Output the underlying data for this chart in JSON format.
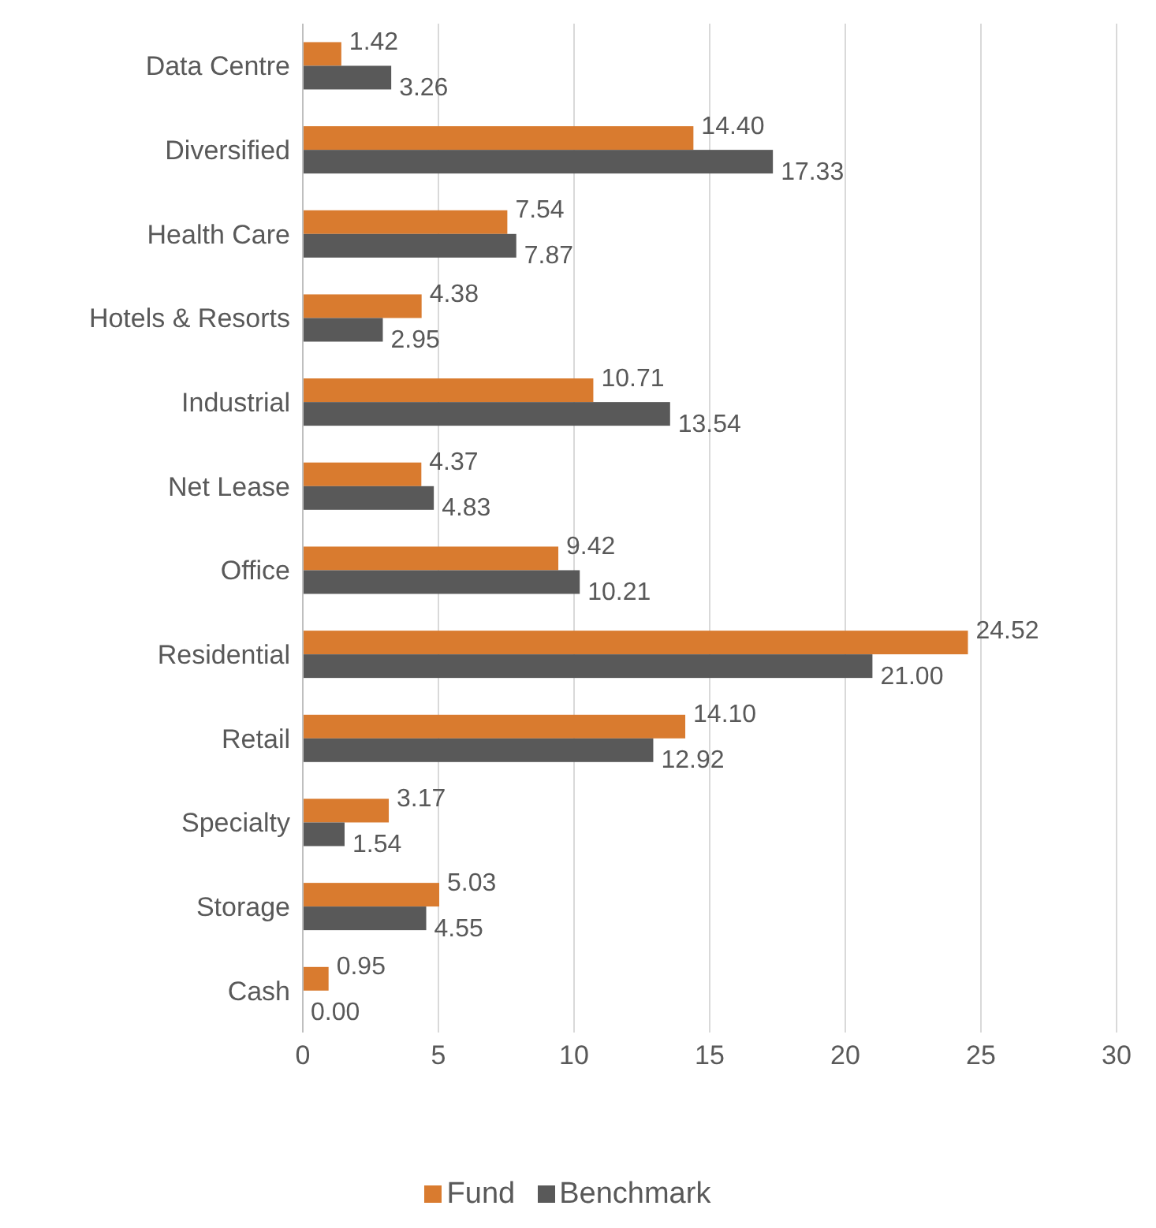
{
  "chart_data": {
    "type": "bar",
    "orientation": "horizontal",
    "categories": [
      "Data Centre",
      "Diversified",
      "Health Care",
      "Hotels & Resorts",
      "Industrial",
      "Net Lease",
      "Office",
      "Residential",
      "Retail",
      "Specialty",
      "Storage",
      "Cash"
    ],
    "series": [
      {
        "name": "Fund",
        "color": "#d97b2f",
        "values": [
          1.42,
          14.4,
          7.54,
          4.38,
          10.71,
          4.37,
          9.42,
          24.52,
          14.1,
          3.17,
          5.03,
          0.95
        ],
        "value_labels": [
          "1.42",
          "14.40",
          "7.54",
          "4.38",
          "10.71",
          "4.37",
          "9.42",
          "24.52",
          "14.10",
          "3.17",
          "5.03",
          "0.95"
        ]
      },
      {
        "name": "Benchmark",
        "color": "#595959",
        "values": [
          3.26,
          17.33,
          7.87,
          2.95,
          13.54,
          4.83,
          10.21,
          21.0,
          12.92,
          1.54,
          4.55,
          0.0
        ],
        "value_labels": [
          "3.26",
          "17.33",
          "7.87",
          "2.95",
          "13.54",
          "4.83",
          "10.21",
          "21.00",
          "12.92",
          "1.54",
          "4.55",
          "0.00"
        ]
      }
    ],
    "xlim": [
      0,
      30
    ],
    "xticks": [
      0,
      5,
      10,
      15,
      20,
      25,
      30
    ],
    "grid": "x",
    "legend": "bottom"
  }
}
